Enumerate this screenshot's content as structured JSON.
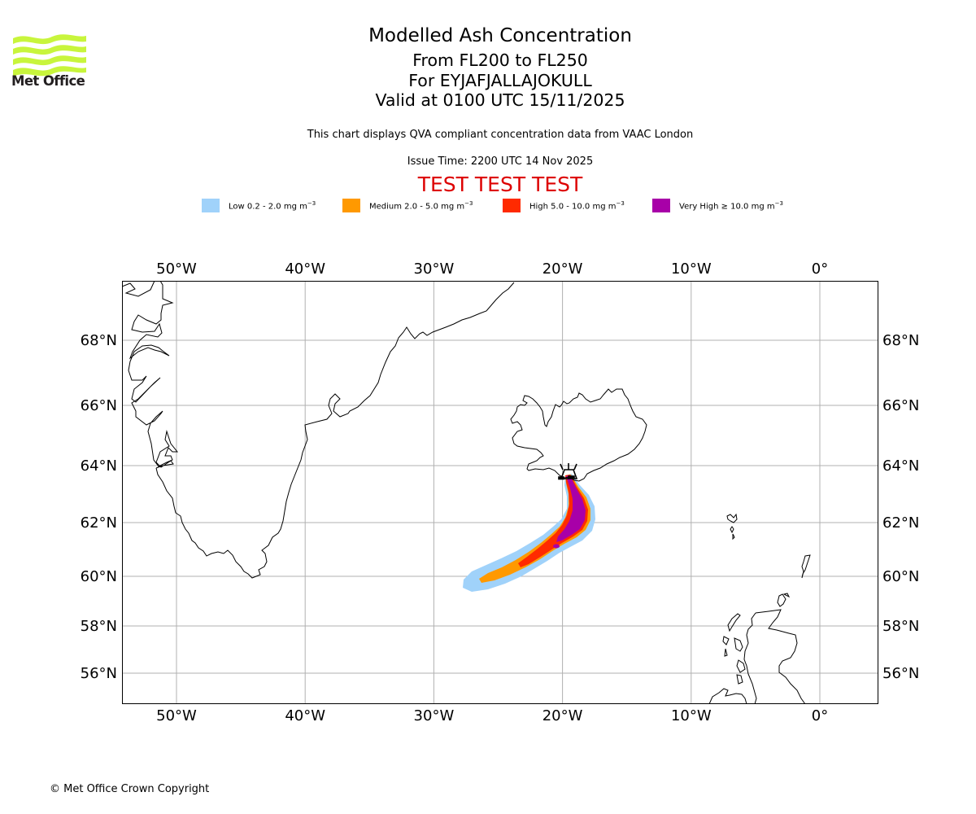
{
  "logo": {
    "name": "Met Office",
    "icon": "met-office-waves-logo",
    "color": "#c8f53c"
  },
  "header": {
    "title": "Modelled Ash Concentration",
    "flight_levels": "From FL200 to FL250",
    "volcano": "For EYJAFJALLAJOKULL",
    "valid_time": "Valid at 0100 UTC 15/11/2025",
    "description": "This chart displays QVA compliant concentration data from VAAC London",
    "issue_time": "Issue Time: 2200 UTC 14 Nov 2025",
    "test_banner": "TEST TEST TEST",
    "test_color": "#dd0000"
  },
  "legend": [
    {
      "label": "Low 0.2 - 2.0 mg m",
      "unit_exp": "−3",
      "color": "#a0d2fa"
    },
    {
      "label": "Medium 2.0 - 5.0 mg m",
      "unit_exp": "−3",
      "color": "#ff9900"
    },
    {
      "label": "High 5.0 - 10.0 mg m",
      "unit_exp": "−3",
      "color": "#ff2a00"
    },
    {
      "label": "Very High ≥ 10.0 mg m",
      "unit_exp": "−3",
      "color": "#a800a8"
    }
  ],
  "map": {
    "extent": {
      "lon_min": -54.2,
      "lon_max": 4.5,
      "lat_min": 55.0,
      "lat_max": 69.8
    },
    "lon_ticks": [
      {
        "value": -50,
        "label": "50°W"
      },
      {
        "value": -40,
        "label": "40°W"
      },
      {
        "value": -30,
        "label": "30°W"
      },
      {
        "value": -20,
        "label": "20°W"
      },
      {
        "value": -10,
        "label": "10°W"
      },
      {
        "value": 0,
        "label": "0°"
      }
    ],
    "lat_ticks": [
      {
        "value": 68,
        "label": "68°N"
      },
      {
        "value": 66,
        "label": "66°N"
      },
      {
        "value": 64,
        "label": "64°N"
      },
      {
        "value": 62,
        "label": "62°N"
      },
      {
        "value": 60,
        "label": "60°N"
      },
      {
        "value": 58,
        "label": "58°N"
      },
      {
        "value": 56,
        "label": "56°N"
      }
    ],
    "grid_color": "#b0b0b0",
    "volcano_marker": {
      "name": "Eyjafjallajokull",
      "lon": -19.6,
      "lat": 63.63,
      "icon": "volcano-icon"
    }
  },
  "footer": {
    "copyright": "© Met Office Crown Copyright"
  }
}
